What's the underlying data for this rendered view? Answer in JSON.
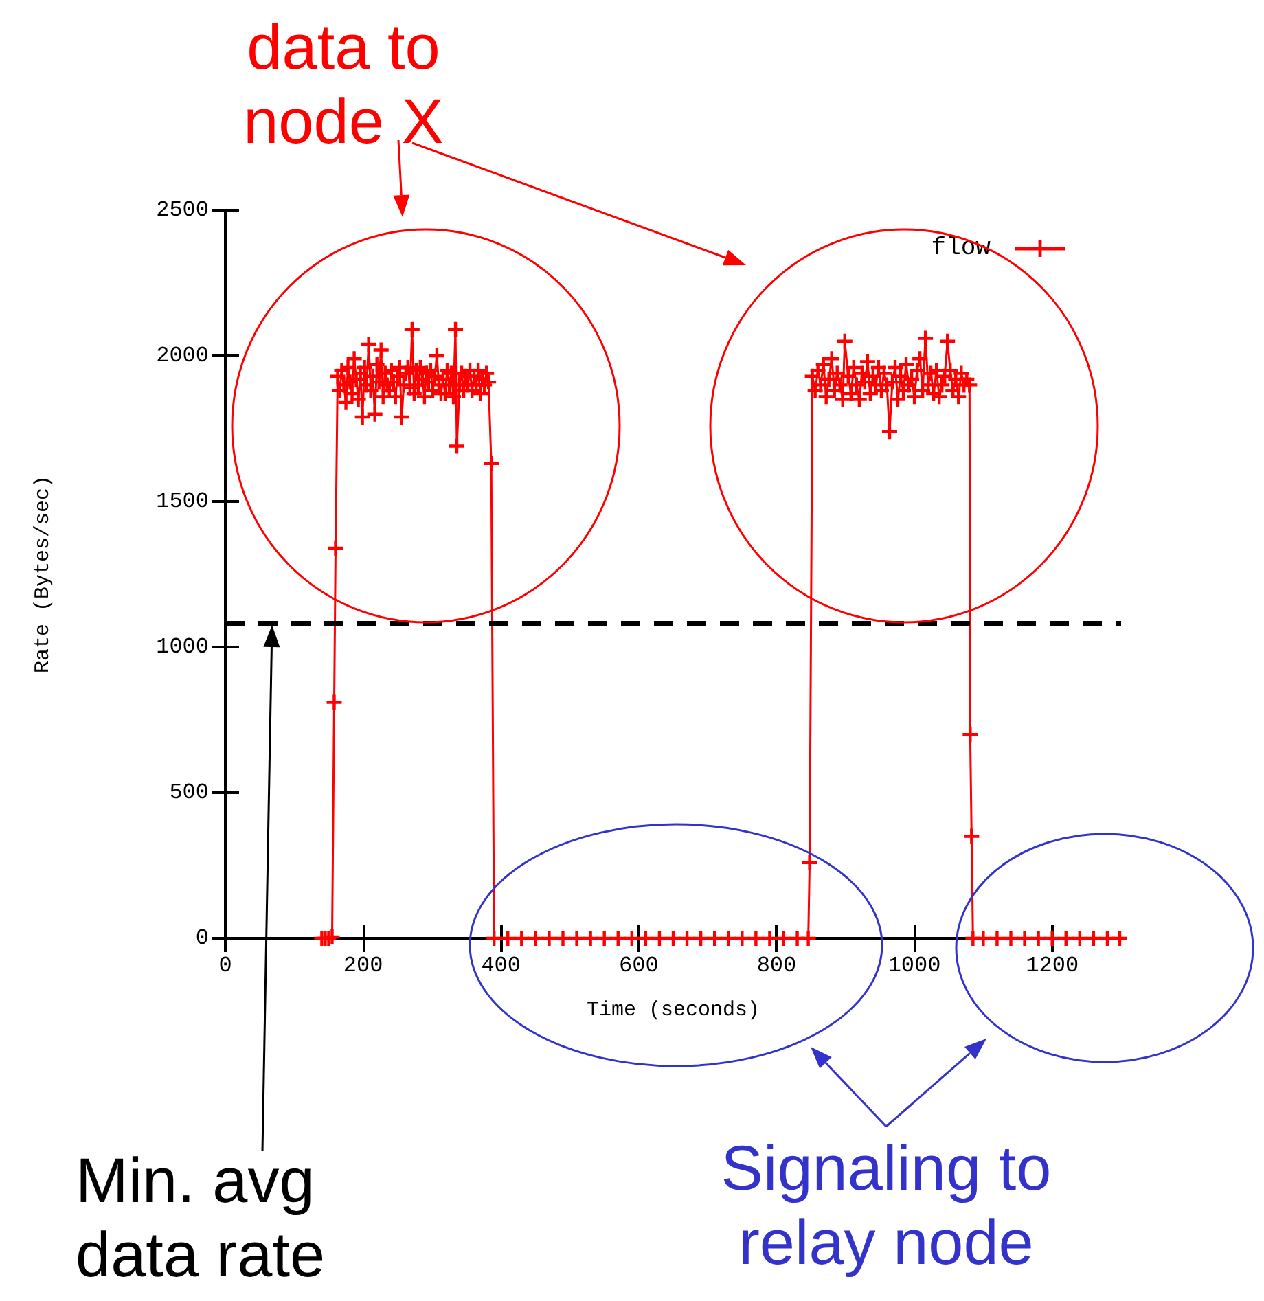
{
  "chart_data": {
    "type": "line",
    "xlabel": "Time (seconds)",
    "ylabel": "Rate (Bytes/sec)",
    "xlim": [
      0,
      1300
    ],
    "xticks": [
      0,
      200,
      400,
      600,
      800,
      1000,
      1200
    ],
    "ylim": [
      0,
      2500
    ],
    "yticks": [
      0,
      500,
      1000,
      1500,
      2000,
      2500
    ],
    "grid": false,
    "legend": "top right",
    "marker": "cross",
    "line_style": "solid",
    "series": [
      {
        "name": "flow",
        "color": "#ff0000",
        "x": [
          140,
          145,
          150,
          155,
          158,
          160,
          163,
          166,
          169,
          172,
          175,
          178,
          181,
          184,
          187,
          190,
          193,
          196,
          199,
          202,
          205,
          208,
          211,
          214,
          217,
          220,
          223,
          226,
          229,
          232,
          235,
          238,
          241,
          244,
          247,
          250,
          253,
          256,
          259,
          262,
          265,
          268,
          271,
          274,
          277,
          280,
          283,
          286,
          289,
          292,
          295,
          298,
          301,
          304,
          307,
          310,
          313,
          316,
          319,
          322,
          325,
          328,
          331,
          334,
          336,
          340,
          343,
          346,
          349,
          352,
          355,
          358,
          361,
          364,
          367,
          370,
          373,
          376,
          379,
          382,
          386,
          390,
          410,
          430,
          450,
          470,
          490,
          510,
          530,
          550,
          570,
          590,
          610,
          630,
          650,
          670,
          690,
          710,
          730,
          750,
          770,
          790,
          810,
          830,
          846,
          848,
          852,
          856,
          860,
          864,
          868,
          872,
          876,
          880,
          884,
          888,
          892,
          896,
          899,
          904,
          908,
          912,
          916,
          920,
          924,
          928,
          932,
          936,
          940,
          944,
          948,
          952,
          956,
          960,
          964,
          968,
          972,
          976,
          980,
          984,
          988,
          992,
          996,
          1000,
          1004,
          1008,
          1012,
          1016,
          1020,
          1024,
          1028,
          1032,
          1036,
          1040,
          1044,
          1048,
          1052,
          1056,
          1060,
          1064,
          1068,
          1072,
          1076,
          1080,
          1081,
          1083,
          1085,
          1100,
          1120,
          1140,
          1160,
          1180,
          1200,
          1220,
          1240,
          1260,
          1280,
          1298
        ],
        "values": [
          0,
          0,
          0,
          5,
          810,
          1340,
          1930,
          1880,
          1950,
          1900,
          1840,
          1960,
          1910,
          1870,
          1990,
          1920,
          1850,
          1940,
          1790,
          1960,
          1900,
          2040,
          1880,
          1930,
          1800,
          1970,
          1910,
          2020,
          1860,
          1940,
          1900,
          1880,
          1950,
          1910,
          1860,
          1930,
          1960,
          1790,
          1900,
          1940,
          1960,
          1890,
          2090,
          1870,
          1950,
          1900,
          1960,
          1920,
          1860,
          1940,
          1910,
          1950,
          1880,
          1930,
          2000,
          1900,
          1870,
          1920,
          1870,
          1950,
          1900,
          1940,
          1860,
          2090,
          1690,
          1900,
          1940,
          1880,
          1930,
          1900,
          1950,
          1880,
          1930,
          1900,
          1950,
          1870,
          1920,
          1900,
          1940,
          1910,
          1630,
          0,
          0,
          0,
          0,
          0,
          0,
          0,
          0,
          0,
          0,
          0,
          0,
          0,
          0,
          0,
          0,
          0,
          0,
          0,
          0,
          0,
          0,
          0,
          0,
          260,
          1930,
          1880,
          1950,
          1900,
          1970,
          1860,
          1920,
          1990,
          1880,
          1940,
          1900,
          1850,
          2050,
          1930,
          1870,
          1960,
          1900,
          1850,
          1940,
          1910,
          1980,
          1870,
          1930,
          1900,
          1960,
          1880,
          1940,
          1900,
          1740,
          1910,
          1960,
          1850,
          1930,
          1880,
          1970,
          1900,
          1920,
          1860,
          1950,
          1990,
          1880,
          2060,
          1900,
          1940,
          1870,
          1950,
          1860,
          1900,
          1930,
          2050,
          1950,
          1880,
          1920,
          1860,
          1940,
          1900,
          1920,
          1900,
          700,
          350,
          0,
          0,
          0,
          0,
          0,
          0,
          0,
          0,
          0,
          0,
          0,
          0
        ]
      }
    ],
    "ref_lines": [
      {
        "axis": "y",
        "value": 1080,
        "color": "#000000",
        "line_style": "dashed"
      }
    ],
    "annotations": [
      "data to\nnode X",
      "Min. avg\ndata rate",
      "Signaling to\nrelay node"
    ]
  }
}
